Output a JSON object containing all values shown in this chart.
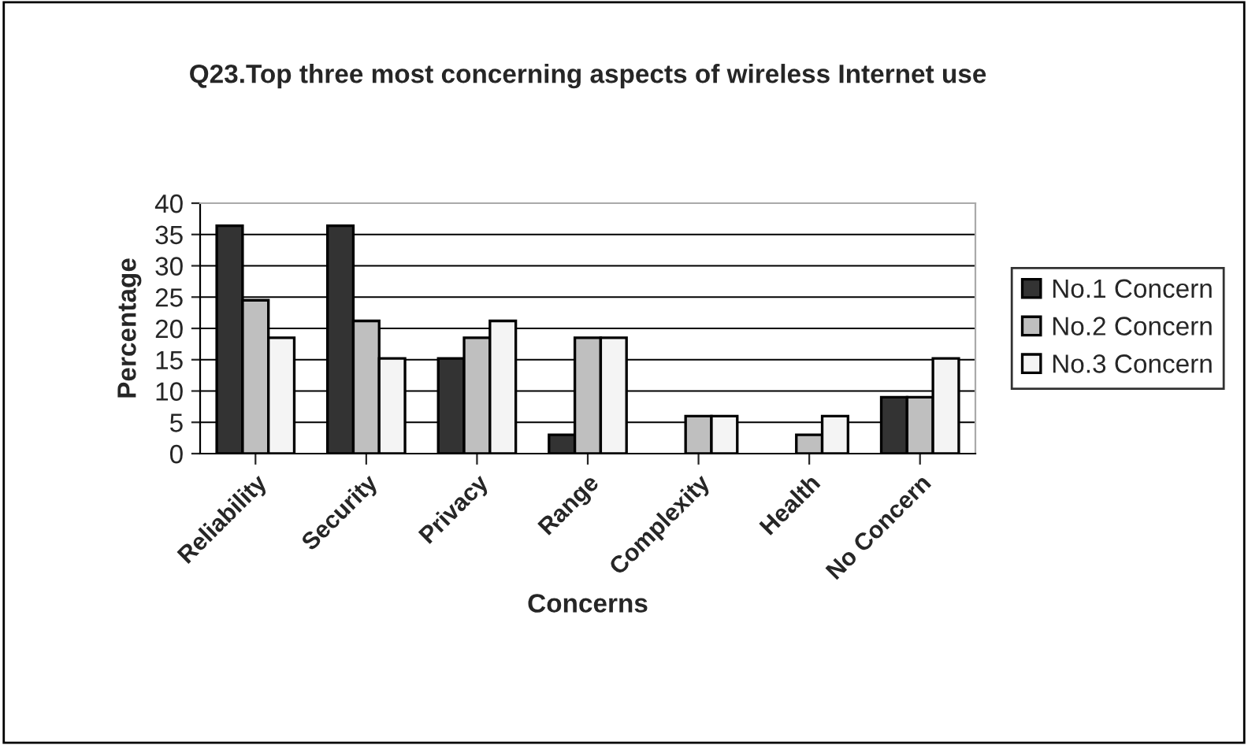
{
  "chart_data": {
    "type": "bar",
    "title": "Q23.Top three most concerning aspects of wireless Internet use",
    "xlabel": "Concerns",
    "ylabel": "Percentage",
    "categories": [
      "Reliability",
      "Security",
      "Privacy",
      "Range",
      "Complexity",
      "Health",
      "No Concern"
    ],
    "series": [
      {
        "name": "No.1 Concern",
        "color": "#333333",
        "values": [
          36.4,
          36.4,
          15.2,
          3,
          null,
          null,
          9
        ]
      },
      {
        "name": "No.2 Concern",
        "color": "#bfbfbf",
        "values": [
          24.5,
          21.2,
          18.5,
          18.5,
          6,
          3,
          9
        ]
      },
      {
        "name": "No.3 Concern",
        "color": "#f4f4f4",
        "values": [
          18.5,
          15.2,
          21.2,
          18.5,
          6,
          6,
          15.2
        ]
      }
    ],
    "ylim": [
      0,
      40
    ],
    "yticks": [
      0,
      5,
      10,
      15,
      20,
      25,
      30,
      35,
      40
    ],
    "grid": "y",
    "legend": "right"
  }
}
